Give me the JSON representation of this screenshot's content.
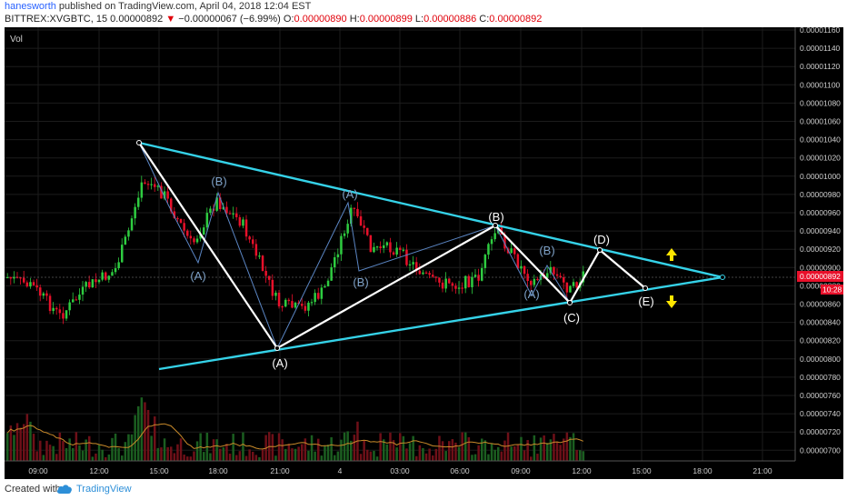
{
  "header": {
    "author": "hanesworth",
    "published_text": " published on TradingView.com, April 04, 2018 12:04 EST",
    "symbol": "BITTREX:XVGBTC, 15",
    "last": "0.00000892",
    "change": "−0.00000067 (−6.99%)",
    "open_label": "O:",
    "open": "0.00000890",
    "high_label": "H:",
    "high": "0.00000899",
    "low_label": "L:",
    "low": "0.00000886",
    "close_label": "C:",
    "close": "0.00000892"
  },
  "chart": {
    "vol_label": "Vol",
    "y_ticks": [
      "0.00001160",
      "0.00001140",
      "0.00001120",
      "0.00001100",
      "0.00001080",
      "0.00001060",
      "0.00001040",
      "0.00001020",
      "0.00001000",
      "0.00000980",
      "0.00000960",
      "0.00000940",
      "0.00000920",
      "0.00000900",
      "0.00000880",
      "0.00000860",
      "0.00000840",
      "0.00000820",
      "0.00000800",
      "0.00000780",
      "0.00000760",
      "0.00000740",
      "0.00000720",
      "0.00000700"
    ],
    "x_ticks": [
      "09:00",
      "12:00",
      "15:00",
      "18:00",
      "21:00",
      "4",
      "03:00",
      "06:00",
      "09:00",
      "12:00",
      "15:00",
      "18:00",
      "21:00"
    ],
    "price_tag": "0.00000892",
    "countdown": "10:28",
    "wave_labels": [
      {
        "text": "(B)",
        "color": "#7fa2c8"
      },
      {
        "text": "(A)",
        "color": "#7fa2c8"
      },
      {
        "text": "(A)",
        "color": "#7fa2c8"
      },
      {
        "text": "(B)",
        "color": "#7fa2c8"
      },
      {
        "text": "(A)",
        "color": "#ffffff"
      },
      {
        "text": "(B)",
        "color": "#ffffff"
      },
      {
        "text": "(B)",
        "color": "#7fa2c8"
      },
      {
        "text": "(A)",
        "color": "#7fa2c8"
      },
      {
        "text": "(C)",
        "color": "#ffffff"
      },
      {
        "text": "(D)",
        "color": "#ffffff"
      },
      {
        "text": "(E)",
        "color": "#ffffff"
      }
    ],
    "colors": {
      "up": "#2ecc40",
      "down": "#e8102a",
      "trendline": "#35d2e8",
      "wave": "#ffffff",
      "arrow": "#ffe600"
    }
  },
  "footer": {
    "created_with": "Created with",
    "brand": "TradingView"
  }
}
